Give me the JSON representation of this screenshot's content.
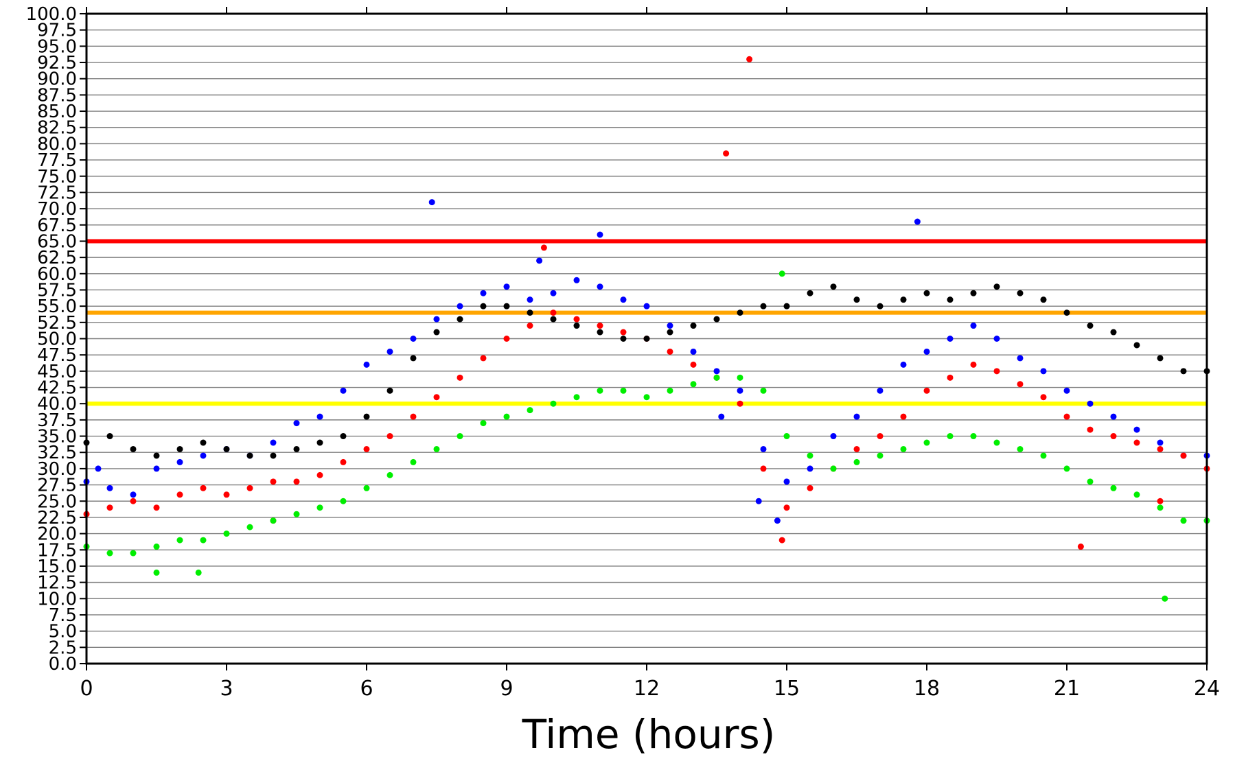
{
  "chart_data": {
    "type": "scatter",
    "xlabel": "Time (hours)",
    "ylabel": "",
    "xlim": [
      0,
      24
    ],
    "ylim": [
      0,
      100
    ],
    "xticks": [
      0,
      3,
      6,
      9,
      12,
      15,
      18,
      21,
      24
    ],
    "xtick_labels": [
      "0",
      "3",
      "6",
      "9",
      "12",
      "15",
      "18",
      "21",
      "24"
    ],
    "ytick_step": 2.5,
    "ytick_labels": [
      "0.0",
      "2.5",
      "5.0",
      "7.5",
      "10.0",
      "12.5",
      "15.0",
      "17.5",
      "20.0",
      "22.5",
      "25.0",
      "27.5",
      "30.0",
      "32.5",
      "35.0",
      "37.5",
      "40.0",
      "42.5",
      "45.0",
      "47.5",
      "50.0",
      "52.5",
      "55.0",
      "57.5",
      "60.0",
      "62.5",
      "65.0",
      "67.5",
      "70.0",
      "72.5",
      "75.0",
      "77.5",
      "80.0",
      "82.5",
      "85.0",
      "87.5",
      "90.0",
      "92.5",
      "95.0",
      "97.5",
      "100.0"
    ],
    "grid": true,
    "reference_lines": [
      {
        "y": 65,
        "color": "#ff0000"
      },
      {
        "y": 54,
        "color": "#ffa500"
      },
      {
        "y": 40,
        "color": "#ffff00"
      }
    ],
    "series": [
      {
        "color": "#0000ff",
        "points": [
          [
            0,
            28
          ],
          [
            0.25,
            30
          ],
          [
            0.5,
            27
          ],
          [
            1,
            26
          ],
          [
            1.5,
            30
          ],
          [
            2,
            31
          ],
          [
            2.5,
            32
          ],
          [
            3,
            33
          ],
          [
            3.5,
            32
          ],
          [
            4,
            34
          ],
          [
            4.5,
            37
          ],
          [
            5,
            38
          ],
          [
            5.5,
            42
          ],
          [
            6,
            46
          ],
          [
            6.5,
            48
          ],
          [
            7,
            50
          ],
          [
            7.5,
            53
          ],
          [
            8,
            55
          ],
          [
            8.5,
            57
          ],
          [
            9,
            58
          ],
          [
            9.5,
            56
          ],
          [
            10,
            57
          ],
          [
            10.5,
            59
          ],
          [
            11,
            58
          ],
          [
            11.5,
            56
          ],
          [
            12,
            55
          ],
          [
            12.5,
            52
          ],
          [
            13,
            48
          ],
          [
            13.5,
            45
          ],
          [
            14,
            42
          ],
          [
            14.5,
            33
          ],
          [
            15,
            28
          ],
          [
            15.5,
            30
          ],
          [
            16,
            35
          ],
          [
            16.5,
            38
          ],
          [
            17,
            42
          ],
          [
            17.5,
            46
          ],
          [
            18,
            48
          ],
          [
            18.5,
            50
          ],
          [
            19,
            52
          ],
          [
            19.5,
            50
          ],
          [
            20,
            47
          ],
          [
            20.5,
            45
          ],
          [
            21,
            42
          ],
          [
            21.5,
            40
          ],
          [
            22,
            38
          ],
          [
            22.5,
            36
          ],
          [
            23,
            34
          ],
          [
            23.5,
            32
          ],
          [
            24,
            32
          ],
          [
            7.4,
            71
          ],
          [
            11,
            66
          ],
          [
            17.8,
            68
          ],
          [
            9.7,
            62
          ],
          [
            13.6,
            38
          ],
          [
            14.4,
            25
          ],
          [
            14.8,
            22
          ]
        ]
      },
      {
        "color": "#ff0000",
        "points": [
          [
            0,
            23
          ],
          [
            0.5,
            24
          ],
          [
            1,
            25
          ],
          [
            1.5,
            24
          ],
          [
            2,
            26
          ],
          [
            2.5,
            27
          ],
          [
            3,
            26
          ],
          [
            3.5,
            27
          ],
          [
            4,
            28
          ],
          [
            4.5,
            28
          ],
          [
            5,
            29
          ],
          [
            5.5,
            31
          ],
          [
            6,
            33
          ],
          [
            6.5,
            35
          ],
          [
            7,
            38
          ],
          [
            7.5,
            41
          ],
          [
            8,
            44
          ],
          [
            8.5,
            47
          ],
          [
            9,
            50
          ],
          [
            9.5,
            52
          ],
          [
            10,
            54
          ],
          [
            10.5,
            53
          ],
          [
            11,
            52
          ],
          [
            11.5,
            51
          ],
          [
            12,
            50
          ],
          [
            12.5,
            48
          ],
          [
            13,
            46
          ],
          [
            13.5,
            44
          ],
          [
            14,
            40
          ],
          [
            14.5,
            30
          ],
          [
            15,
            24
          ],
          [
            15.5,
            27
          ],
          [
            16,
            30
          ],
          [
            16.5,
            33
          ],
          [
            17,
            35
          ],
          [
            17.5,
            38
          ],
          [
            18,
            42
          ],
          [
            18.5,
            44
          ],
          [
            19,
            46
          ],
          [
            19.5,
            45
          ],
          [
            20,
            43
          ],
          [
            20.5,
            41
          ],
          [
            21,
            38
          ],
          [
            21.5,
            36
          ],
          [
            22,
            35
          ],
          [
            22.5,
            34
          ],
          [
            23,
            33
          ],
          [
            23.5,
            32
          ],
          [
            24,
            30
          ],
          [
            13.7,
            78.5
          ],
          [
            14.2,
            93
          ],
          [
            9.8,
            64
          ],
          [
            14.9,
            19
          ],
          [
            21.3,
            18
          ],
          [
            4,
            22
          ],
          [
            23,
            25
          ]
        ]
      },
      {
        "color": "#00ee00",
        "points": [
          [
            0,
            18
          ],
          [
            0.5,
            17
          ],
          [
            1,
            17
          ],
          [
            1.5,
            18
          ],
          [
            2,
            19
          ],
          [
            2.5,
            19
          ],
          [
            3,
            20
          ],
          [
            3.5,
            21
          ],
          [
            4,
            22
          ],
          [
            4.5,
            23
          ],
          [
            5,
            24
          ],
          [
            5.5,
            25
          ],
          [
            6,
            27
          ],
          [
            6.5,
            29
          ],
          [
            7,
            31
          ],
          [
            7.5,
            33
          ],
          [
            8,
            35
          ],
          [
            8.5,
            37
          ],
          [
            9,
            38
          ],
          [
            9.5,
            39
          ],
          [
            10,
            40
          ],
          [
            10.5,
            41
          ],
          [
            11,
            42
          ],
          [
            11.5,
            42
          ],
          [
            12,
            41
          ],
          [
            12.5,
            42
          ],
          [
            13,
            43
          ],
          [
            13.5,
            44
          ],
          [
            14,
            44
          ],
          [
            14.5,
            42
          ],
          [
            15,
            35
          ],
          [
            15.5,
            32
          ],
          [
            16,
            30
          ],
          [
            16.5,
            31
          ],
          [
            17,
            32
          ],
          [
            17.5,
            33
          ],
          [
            18,
            34
          ],
          [
            18.5,
            35
          ],
          [
            19,
            35
          ],
          [
            19.5,
            34
          ],
          [
            20,
            33
          ],
          [
            20.5,
            32
          ],
          [
            21,
            30
          ],
          [
            21.5,
            28
          ],
          [
            22,
            27
          ],
          [
            22.5,
            26
          ],
          [
            23,
            24
          ],
          [
            23.5,
            22
          ],
          [
            24,
            22
          ],
          [
            23.1,
            10
          ],
          [
            14.9,
            60
          ],
          [
            1.5,
            14
          ],
          [
            2.4,
            14
          ]
        ]
      },
      {
        "color": "#000000",
        "points": [
          [
            0,
            34
          ],
          [
            0.5,
            35
          ],
          [
            1,
            33
          ],
          [
            1.5,
            32
          ],
          [
            2,
            33
          ],
          [
            2.5,
            34
          ],
          [
            3,
            33
          ],
          [
            3.5,
            32
          ],
          [
            4,
            32
          ],
          [
            4.5,
            33
          ],
          [
            5,
            34
          ],
          [
            5.5,
            35
          ],
          [
            6,
            38
          ],
          [
            6.5,
            42
          ],
          [
            7,
            47
          ],
          [
            7.5,
            51
          ],
          [
            8,
            53
          ],
          [
            8.5,
            55
          ],
          [
            9,
            55
          ],
          [
            9.5,
            54
          ],
          [
            10,
            53
          ],
          [
            10.5,
            52
          ],
          [
            11,
            51
          ],
          [
            11.5,
            50
          ],
          [
            12,
            50
          ],
          [
            12.5,
            51
          ],
          [
            13,
            52
          ],
          [
            13.5,
            53
          ],
          [
            14,
            54
          ],
          [
            14.5,
            55
          ],
          [
            15,
            55
          ],
          [
            15.5,
            57
          ],
          [
            16,
            58
          ],
          [
            16.5,
            56
          ],
          [
            17,
            55
          ],
          [
            17.5,
            56
          ],
          [
            18,
            57
          ],
          [
            18.5,
            56
          ],
          [
            19,
            57
          ],
          [
            19.5,
            58
          ],
          [
            20,
            57
          ],
          [
            20.5,
            56
          ],
          [
            21,
            54
          ],
          [
            21.5,
            52
          ],
          [
            22,
            51
          ],
          [
            22.5,
            49
          ],
          [
            23,
            47
          ],
          [
            23.5,
            45
          ],
          [
            24,
            45
          ]
        ]
      }
    ]
  }
}
